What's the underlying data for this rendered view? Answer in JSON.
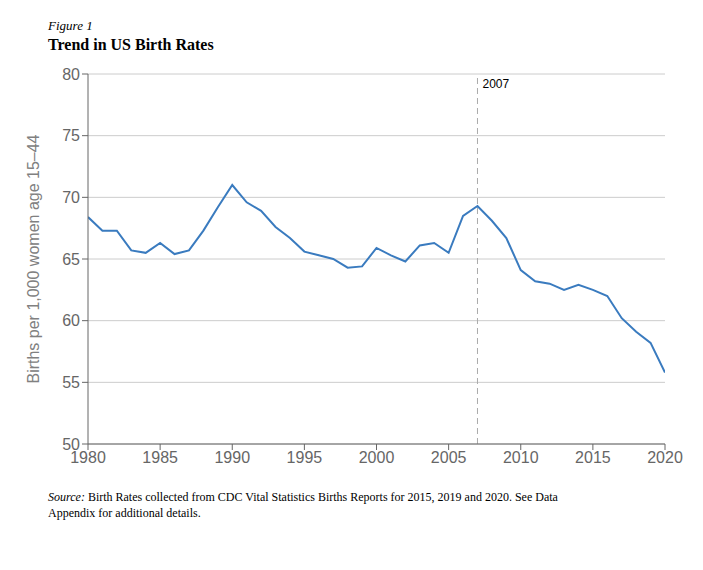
{
  "chart_data": {
    "type": "line",
    "subtitle": "Figure 1",
    "title": "Trend in US Birth Rates",
    "ylabel": "Births per 1,000 women age 15–44",
    "source": "Source: Birth Rates collected from CDC Vital Statistics Births Reports for 2015, 2019 and 2020. See Data\nAppendix for additional details.",
    "x": [
      1980,
      1981,
      1982,
      1983,
      1984,
      1985,
      1986,
      1987,
      1988,
      1989,
      1990,
      1991,
      1992,
      1993,
      1994,
      1995,
      1996,
      1997,
      1998,
      1999,
      2000,
      2001,
      2002,
      2003,
      2004,
      2005,
      2006,
      2007,
      2008,
      2009,
      2010,
      2011,
      2012,
      2013,
      2014,
      2015,
      2016,
      2017,
      2018,
      2019,
      2020
    ],
    "values": [
      68.4,
      67.3,
      67.3,
      65.7,
      65.5,
      66.3,
      65.4,
      65.7,
      67.3,
      69.2,
      71.0,
      69.6,
      68.9,
      67.6,
      66.7,
      65.6,
      65.3,
      65.0,
      64.3,
      64.4,
      65.9,
      65.3,
      64.8,
      66.1,
      66.3,
      65.5,
      68.5,
      69.3,
      68.1,
      66.7,
      64.1,
      63.2,
      63.0,
      62.5,
      62.9,
      62.5,
      62.0,
      60.2,
      59.1,
      58.2,
      55.8
    ],
    "color": "#3a7bbf",
    "xlim": [
      1980,
      2020
    ],
    "ylim": [
      50,
      80
    ],
    "xticks": [
      1980,
      1985,
      1990,
      1995,
      2000,
      2005,
      2010,
      2015,
      2020
    ],
    "yticks": [
      50,
      55,
      60,
      65,
      70,
      75,
      80
    ],
    "grid": true,
    "annotations": [
      {
        "x": 2007,
        "label": "2007",
        "line_style": "dashed"
      }
    ]
  }
}
